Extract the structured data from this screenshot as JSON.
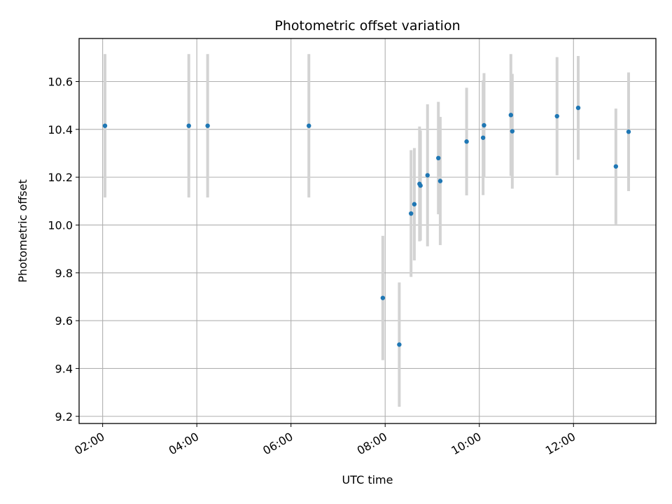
{
  "chart_data": {
    "type": "scatter",
    "title": "Photometric offset variation",
    "xlabel": "UTC time",
    "ylabel": "Photometric offset",
    "x_unit": "hours",
    "xlim": [
      1.5,
      13.75
    ],
    "ylim": [
      9.17,
      10.78
    ],
    "grid": true,
    "error_bar_color": "#d3d3d3",
    "point_color": "#1f77b4",
    "x_ticks": [
      {
        "value": 2,
        "label": "02:00"
      },
      {
        "value": 4,
        "label": "04:00"
      },
      {
        "value": 6,
        "label": "06:00"
      },
      {
        "value": 8,
        "label": "08:00"
      },
      {
        "value": 10,
        "label": "10:00"
      },
      {
        "value": 12,
        "label": "12:00"
      }
    ],
    "y_ticks": [
      {
        "value": 9.2,
        "label": "9.2"
      },
      {
        "value": 9.4,
        "label": "9.4"
      },
      {
        "value": 9.6,
        "label": "9.6"
      },
      {
        "value": 9.8,
        "label": "9.8"
      },
      {
        "value": 10.0,
        "label": "10.0"
      },
      {
        "value": 10.2,
        "label": "10.2"
      },
      {
        "value": 10.4,
        "label": "10.4"
      },
      {
        "value": 10.6,
        "label": "10.6"
      }
    ],
    "points": [
      {
        "x": 2.05,
        "y": 10.415,
        "err": 0.3
      },
      {
        "x": 3.83,
        "y": 10.415,
        "err": 0.3
      },
      {
        "x": 4.23,
        "y": 10.415,
        "err": 0.3
      },
      {
        "x": 6.38,
        "y": 10.415,
        "err": 0.3
      },
      {
        "x": 7.95,
        "y": 9.695,
        "err": 0.26
      },
      {
        "x": 8.3,
        "y": 9.5,
        "err": 0.26
      },
      {
        "x": 8.55,
        "y": 10.048,
        "err": 0.265
      },
      {
        "x": 8.62,
        "y": 10.087,
        "err": 0.235
      },
      {
        "x": 8.73,
        "y": 10.172,
        "err": 0.24
      },
      {
        "x": 8.75,
        "y": 10.165,
        "err": 0.23
      },
      {
        "x": 8.9,
        "y": 10.208,
        "err": 0.297
      },
      {
        "x": 9.13,
        "y": 10.28,
        "err": 0.235
      },
      {
        "x": 9.17,
        "y": 10.184,
        "err": 0.268
      },
      {
        "x": 9.73,
        "y": 10.349,
        "err": 0.225
      },
      {
        "x": 10.08,
        "y": 10.365,
        "err": 0.24
      },
      {
        "x": 10.1,
        "y": 10.417,
        "err": 0.218
      },
      {
        "x": 10.67,
        "y": 10.46,
        "err": 0.255
      },
      {
        "x": 10.7,
        "y": 10.392,
        "err": 0.24
      },
      {
        "x": 11.65,
        "y": 10.455,
        "err": 0.247
      },
      {
        "x": 12.1,
        "y": 10.49,
        "err": 0.217
      },
      {
        "x": 12.9,
        "y": 10.245,
        "err": 0.242
      },
      {
        "x": 13.17,
        "y": 10.39,
        "err": 0.248
      }
    ]
  }
}
